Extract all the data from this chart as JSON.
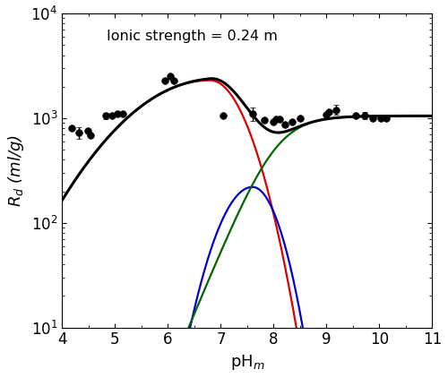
{
  "annotation": "Ionic strength = 0.24 m",
  "xlabel": "pH$_m$",
  "ylabel": "$R_d$ (ml/g)",
  "xlim": [
    4,
    11
  ],
  "ylim": [
    10,
    10000
  ],
  "red_color": "#dd0000",
  "blue_color": "#0000cc",
  "green_color": "#006600",
  "black_color": "#000000",
  "scatter_x": [
    4.18,
    4.32,
    4.48,
    4.54,
    4.83,
    4.95,
    5.05,
    5.15,
    5.95,
    6.05,
    6.12,
    7.05,
    7.6,
    7.82,
    8.0,
    8.05,
    8.12,
    8.22,
    8.35,
    8.5,
    9.0,
    9.05,
    9.18,
    9.55,
    9.72,
    9.88,
    10.02,
    10.12
  ],
  "scatter_y": [
    800,
    730,
    760,
    690,
    1050,
    1060,
    1100,
    1100,
    2300,
    2500,
    2300,
    1060,
    1100,
    950,
    920,
    980,
    980,
    870,
    920,
    1000,
    1070,
    1150,
    1200,
    1060,
    1060,
    1000,
    1000,
    1000
  ],
  "errbars": [
    {
      "idx": 1,
      "yerr": 90
    },
    {
      "idx": 4,
      "yerr": 70
    },
    {
      "idx": 12,
      "yerr": 160
    },
    {
      "idx": 22,
      "yerr": 130
    },
    {
      "idx": 24,
      "yerr": 90
    }
  ],
  "background_color": "#ffffff",
  "font_size": 13,
  "tick_labelsize": 12
}
